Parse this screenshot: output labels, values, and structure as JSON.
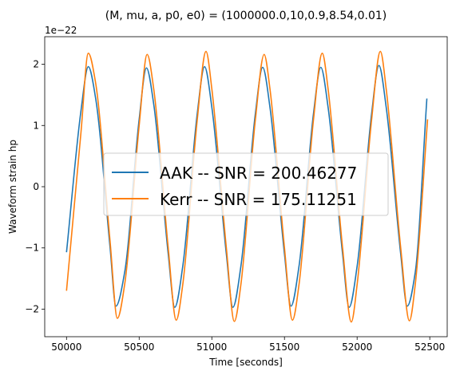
{
  "chart_data": {
    "type": "line",
    "title": "(M, mu, a, p0, e0) = (1000000.0,10,0.9,8.54,0.01)",
    "xlabel": "Time [seconds]",
    "ylabel": "Waveform strain hp",
    "y_offset_label": "1e−22",
    "xlim": [
      49850,
      52620
    ],
    "ylim": [
      -2.45,
      2.45
    ],
    "x_ticks": [
      50000,
      50500,
      51000,
      51500,
      52000,
      52500
    ],
    "x_tick_labels": [
      "50000",
      "50500",
      "51000",
      "51500",
      "52000",
      "52500"
    ],
    "y_ticks": [
      -2,
      -1,
      0,
      1,
      2
    ],
    "y_tick_labels": [
      "−2",
      "−1",
      "0",
      "1",
      "2"
    ],
    "grid": false,
    "legend_position": "center",
    "series": [
      {
        "name": "AAK -- SNR = 200.46277",
        "color": "#1f77b4",
        "x": [
          50000,
          50100,
          50150,
          50200,
          50300,
          50340,
          50400,
          50500,
          50550,
          50600,
          50700,
          50745,
          50800,
          50900,
          50950,
          51000,
          51100,
          51145,
          51200,
          51300,
          51350,
          51400,
          51500,
          51545,
          51600,
          51700,
          51750,
          51800,
          51900,
          51945,
          52000,
          52100,
          52150,
          52200,
          52300,
          52345,
          52400,
          52480
        ],
        "values": [
          -1.07,
          1.25,
          1.96,
          1.45,
          -1.0,
          -1.95,
          -1.4,
          1.1,
          1.94,
          1.35,
          -1.1,
          -1.97,
          -1.3,
          1.2,
          1.96,
          1.3,
          -1.1,
          -1.97,
          -1.3,
          1.2,
          1.95,
          1.3,
          -1.1,
          -1.95,
          -1.3,
          1.2,
          1.95,
          1.3,
          -1.1,
          -1.97,
          -1.3,
          1.2,
          1.98,
          1.3,
          -1.1,
          -1.95,
          -1.4,
          1.44
        ]
      },
      {
        "name": "Kerr -- SNR = 175.11251",
        "color": "#ff7f0e",
        "x": [
          50000,
          50100,
          50150,
          50200,
          50300,
          50350,
          50400,
          50500,
          50555,
          50600,
          50700,
          50755,
          50800,
          50900,
          50960,
          51000,
          51100,
          51155,
          51200,
          51300,
          51360,
          51400,
          51500,
          51555,
          51600,
          51700,
          51760,
          51800,
          51900,
          51960,
          52000,
          52100,
          52160,
          52200,
          52300,
          52360,
          52400,
          52485
        ],
        "values": [
          -1.7,
          0.9,
          2.18,
          1.7,
          -0.9,
          -2.15,
          -1.6,
          1.0,
          2.16,
          1.6,
          -1.0,
          -2.18,
          -1.6,
          1.1,
          2.21,
          1.6,
          -1.0,
          -2.2,
          -1.6,
          1.1,
          2.16,
          1.6,
          -1.0,
          -2.18,
          -1.6,
          1.1,
          2.18,
          1.6,
          -1.0,
          -2.21,
          -1.6,
          1.1,
          2.21,
          1.6,
          -1.0,
          -2.19,
          -1.6,
          1.1
        ]
      }
    ]
  }
}
